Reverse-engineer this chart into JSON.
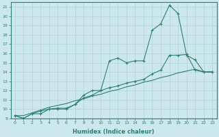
{
  "xlabel": "Humidex (Indice chaleur)",
  "x": [
    0,
    1,
    2,
    3,
    4,
    5,
    6,
    7,
    8,
    9,
    10,
    11,
    12,
    13,
    14,
    15,
    16,
    17,
    18,
    19,
    20,
    21,
    22,
    23
  ],
  "line1": [
    9.3,
    9.0,
    9.5,
    9.5,
    10.0,
    10.0,
    10.0,
    10.5,
    11.5,
    12.0,
    12.0,
    15.2,
    15.5,
    15.0,
    15.2,
    15.2,
    18.5,
    19.2,
    21.2,
    20.3,
    15.8,
    15.3,
    14.0,
    14.0
  ],
  "line2": [
    9.3,
    9.0,
    9.5,
    9.8,
    10.0,
    10.1,
    10.1,
    10.5,
    11.2,
    11.5,
    12.0,
    12.3,
    12.5,
    12.8,
    13.0,
    13.2,
    13.8,
    14.2,
    15.8,
    15.8,
    15.9,
    14.2,
    14.0,
    14.0
  ],
  "line3": [
    9.3,
    9.3,
    9.6,
    9.9,
    10.2,
    10.4,
    10.6,
    10.9,
    11.1,
    11.4,
    11.6,
    11.9,
    12.1,
    12.4,
    12.6,
    12.9,
    13.1,
    13.4,
    13.6,
    13.9,
    14.1,
    14.3,
    14.0,
    14.0
  ],
  "line_color": "#2d7d74",
  "bg_color": "#cce8ea",
  "grid_color": "#b8d8da",
  "ylim": [
    9,
    21.5
  ],
  "xlim": [
    -0.5,
    23.5
  ],
  "yticks": [
    9,
    10,
    11,
    12,
    13,
    14,
    15,
    16,
    17,
    18,
    19,
    20,
    21
  ],
  "xticks": [
    0,
    1,
    2,
    3,
    4,
    5,
    6,
    7,
    8,
    9,
    10,
    11,
    12,
    13,
    14,
    15,
    16,
    17,
    18,
    19,
    20,
    21,
    22,
    23
  ]
}
